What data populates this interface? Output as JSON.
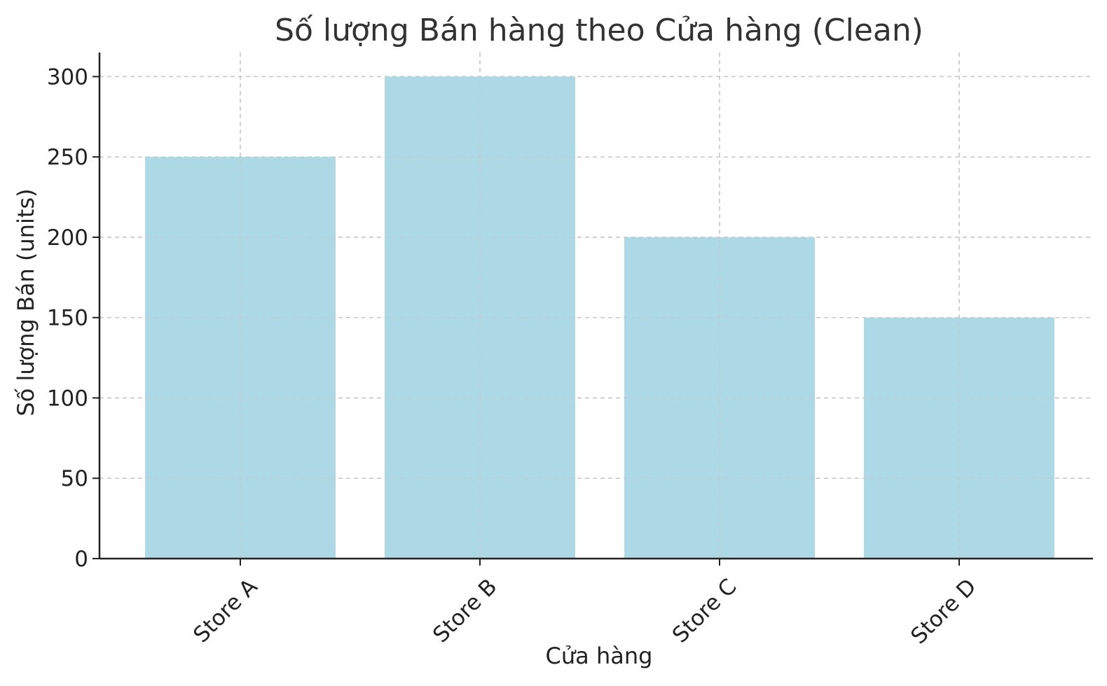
{
  "chart_data": {
    "type": "bar",
    "title": "Số lượng Bán hàng theo Cửa hàng (Clean)",
    "xlabel": "Cửa hàng",
    "ylabel": "Số lượng Bán (units)",
    "categories": [
      "Store A",
      "Store B",
      "Store C",
      "Store D"
    ],
    "values": [
      250,
      300,
      200,
      150
    ],
    "ylim": [
      0,
      315
    ],
    "yticks": [
      0,
      50,
      100,
      150,
      200,
      250,
      300
    ],
    "yticks_labels": [
      "0",
      "50",
      "100",
      "150",
      "200",
      "250",
      "300"
    ],
    "grid": true,
    "bar_color": "#add8e6",
    "legend": "none"
  }
}
